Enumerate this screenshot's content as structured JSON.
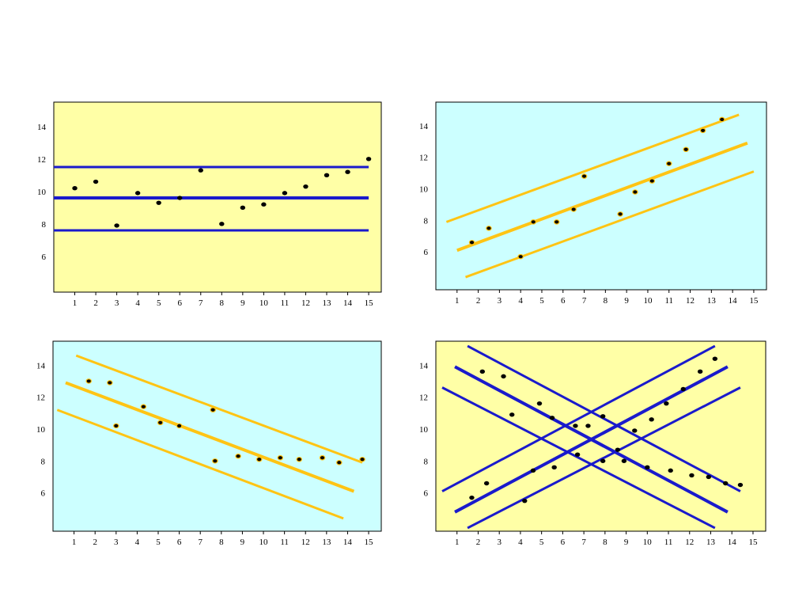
{
  "colors": {
    "yellow_bg": "#ffffa6",
    "cyan_bg": "#ccffff",
    "blue": "#1a1acc",
    "orange": "#ffc414",
    "point": "#000000"
  },
  "chart_data": [
    {
      "type": "scatter",
      "bg": "yellow_bg",
      "xlim": [
        0,
        15.6
      ],
      "ylim": [
        3.8,
        15.5
      ],
      "xticks": [
        "1",
        "2",
        "3",
        "4",
        "5",
        "6",
        "7",
        "8",
        "9",
        "10",
        "11",
        "12",
        "13",
        "14",
        "15"
      ],
      "yticks": [
        "6",
        "8",
        "10",
        "12",
        "14"
      ],
      "points": [
        [
          1,
          10.2
        ],
        [
          2,
          10.6
        ],
        [
          3,
          7.9
        ],
        [
          4,
          9.9
        ],
        [
          5,
          9.3
        ],
        [
          6,
          9.6
        ],
        [
          7,
          11.3
        ],
        [
          8,
          8.0
        ],
        [
          9,
          9.0
        ],
        [
          10,
          9.2
        ],
        [
          11,
          9.9
        ],
        [
          12,
          10.3
        ],
        [
          13,
          11.0
        ],
        [
          14,
          11.2
        ],
        [
          15,
          12.0
        ]
      ],
      "lines": [
        {
          "color": "blue",
          "width": 3,
          "from": [
            0,
            11.5
          ],
          "to": [
            15,
            11.5
          ]
        },
        {
          "color": "blue",
          "width": 4,
          "from": [
            0,
            9.6
          ],
          "to": [
            15,
            9.6
          ]
        },
        {
          "color": "blue",
          "width": 3,
          "from": [
            0,
            7.6
          ],
          "to": [
            15,
            7.6
          ]
        }
      ],
      "point_outline": null
    },
    {
      "type": "scatter",
      "bg": "cyan_bg",
      "xlim": [
        0,
        15.6
      ],
      "ylim": [
        3.6,
        15.5
      ],
      "xticks": [
        "1",
        "2",
        "3",
        "4",
        "5",
        "6",
        "7",
        "8",
        "9",
        "10",
        "11",
        "12",
        "13",
        "14",
        "15"
      ],
      "yticks": [
        "6",
        "8",
        "10",
        "12",
        "14"
      ],
      "points": [
        [
          1.7,
          6.6
        ],
        [
          2.5,
          7.5
        ],
        [
          4.0,
          5.7
        ],
        [
          4.6,
          7.9
        ],
        [
          5.7,
          7.9
        ],
        [
          6.5,
          8.7
        ],
        [
          7.0,
          10.8
        ],
        [
          8.7,
          8.4
        ],
        [
          9.4,
          9.8
        ],
        [
          10.2,
          10.5
        ],
        [
          11.0,
          11.6
        ],
        [
          11.8,
          12.5
        ],
        [
          12.6,
          13.7
        ],
        [
          13.5,
          14.4
        ]
      ],
      "lines": [
        {
          "color": "orange",
          "width": 3,
          "from": [
            0.5,
            7.9
          ],
          "to": [
            14.3,
            14.7
          ]
        },
        {
          "color": "orange",
          "width": 4,
          "from": [
            1.0,
            6.1
          ],
          "to": [
            14.7,
            12.9
          ]
        },
        {
          "color": "orange",
          "width": 3,
          "from": [
            1.4,
            4.4
          ],
          "to": [
            15.0,
            11.1
          ]
        }
      ],
      "point_outline": "orange"
    },
    {
      "type": "scatter",
      "bg": "cyan_bg",
      "xlim": [
        0,
        15.6
      ],
      "ylim": [
        3.6,
        15.5
      ],
      "xticks": [
        "1",
        "2",
        "3",
        "4",
        "5",
        "6",
        "7",
        "8",
        "9",
        "10",
        "11",
        "12",
        "13",
        "14",
        "15"
      ],
      "yticks": [
        "6",
        "8",
        "10",
        "12",
        "14"
      ],
      "points": [
        [
          1.7,
          13.0
        ],
        [
          2.7,
          12.9
        ],
        [
          3.0,
          10.2
        ],
        [
          4.3,
          11.4
        ],
        [
          5.1,
          10.4
        ],
        [
          6.0,
          10.2
        ],
        [
          7.6,
          11.2
        ],
        [
          7.7,
          8.0
        ],
        [
          8.8,
          8.3
        ],
        [
          9.8,
          8.1
        ],
        [
          10.8,
          8.2
        ],
        [
          11.7,
          8.1
        ],
        [
          12.8,
          8.2
        ],
        [
          13.6,
          7.9
        ],
        [
          14.7,
          8.1
        ]
      ],
      "lines": [
        {
          "color": "orange",
          "width": 3,
          "from": [
            1.1,
            14.6
          ],
          "to": [
            14.7,
            7.9
          ]
        },
        {
          "color": "orange",
          "width": 4,
          "from": [
            0.6,
            12.9
          ],
          "to": [
            14.3,
            6.1
          ]
        },
        {
          "color": "orange",
          "width": 3,
          "from": [
            0.2,
            11.2
          ],
          "to": [
            13.8,
            4.4
          ]
        }
      ],
      "point_outline": "orange"
    },
    {
      "type": "scatter",
      "bg": "yellow_bg",
      "xlim": [
        0,
        15.6
      ],
      "ylim": [
        3.6,
        15.5
      ],
      "xticks": [
        "1",
        "2",
        "3",
        "4",
        "5",
        "6",
        "7",
        "8",
        "9",
        "10",
        "11",
        "12",
        "13",
        "14",
        "15"
      ],
      "yticks": [
        "6",
        "8",
        "10",
        "12",
        "14"
      ],
      "points": [
        [
          1.7,
          5.7
        ],
        [
          2.2,
          13.6
        ],
        [
          2.4,
          6.6
        ],
        [
          3.2,
          13.3
        ],
        [
          3.6,
          10.9
        ],
        [
          4.2,
          5.5
        ],
        [
          4.6,
          7.4
        ],
        [
          4.9,
          11.6
        ],
        [
          5.5,
          10.7
        ],
        [
          5.6,
          7.6
        ],
        [
          6.6,
          10.2
        ],
        [
          6.7,
          8.4
        ],
        [
          7.2,
          10.2
        ],
        [
          7.9,
          10.8
        ],
        [
          7.9,
          8.0
        ],
        [
          8.6,
          8.7
        ],
        [
          8.9,
          8.0
        ],
        [
          9.4,
          9.9
        ],
        [
          10.0,
          7.6
        ],
        [
          10.2,
          10.6
        ],
        [
          10.9,
          11.6
        ],
        [
          11.1,
          7.4
        ],
        [
          11.7,
          12.5
        ],
        [
          12.1,
          7.1
        ],
        [
          12.5,
          13.6
        ],
        [
          12.9,
          7.0
        ],
        [
          13.2,
          14.4
        ],
        [
          13.7,
          6.6
        ],
        [
          14.4,
          6.5
        ]
      ],
      "lines": [
        {
          "color": "blue",
          "width": 3,
          "from": [
            0.3,
            6.1
          ],
          "to": [
            13.2,
            15.2
          ]
        },
        {
          "color": "blue",
          "width": 4,
          "from": [
            0.9,
            4.8
          ],
          "to": [
            13.8,
            13.9
          ]
        },
        {
          "color": "blue",
          "width": 3,
          "from": [
            1.5,
            3.8
          ],
          "to": [
            14.4,
            12.6
          ]
        },
        {
          "color": "blue",
          "width": 3,
          "from": [
            1.5,
            15.2
          ],
          "to": [
            14.4,
            6.1
          ]
        },
        {
          "color": "blue",
          "width": 4,
          "from": [
            0.9,
            13.9
          ],
          "to": [
            13.8,
            4.8
          ]
        },
        {
          "color": "blue",
          "width": 3,
          "from": [
            0.3,
            12.6
          ],
          "to": [
            13.2,
            3.8
          ]
        }
      ],
      "point_outline": null
    }
  ]
}
